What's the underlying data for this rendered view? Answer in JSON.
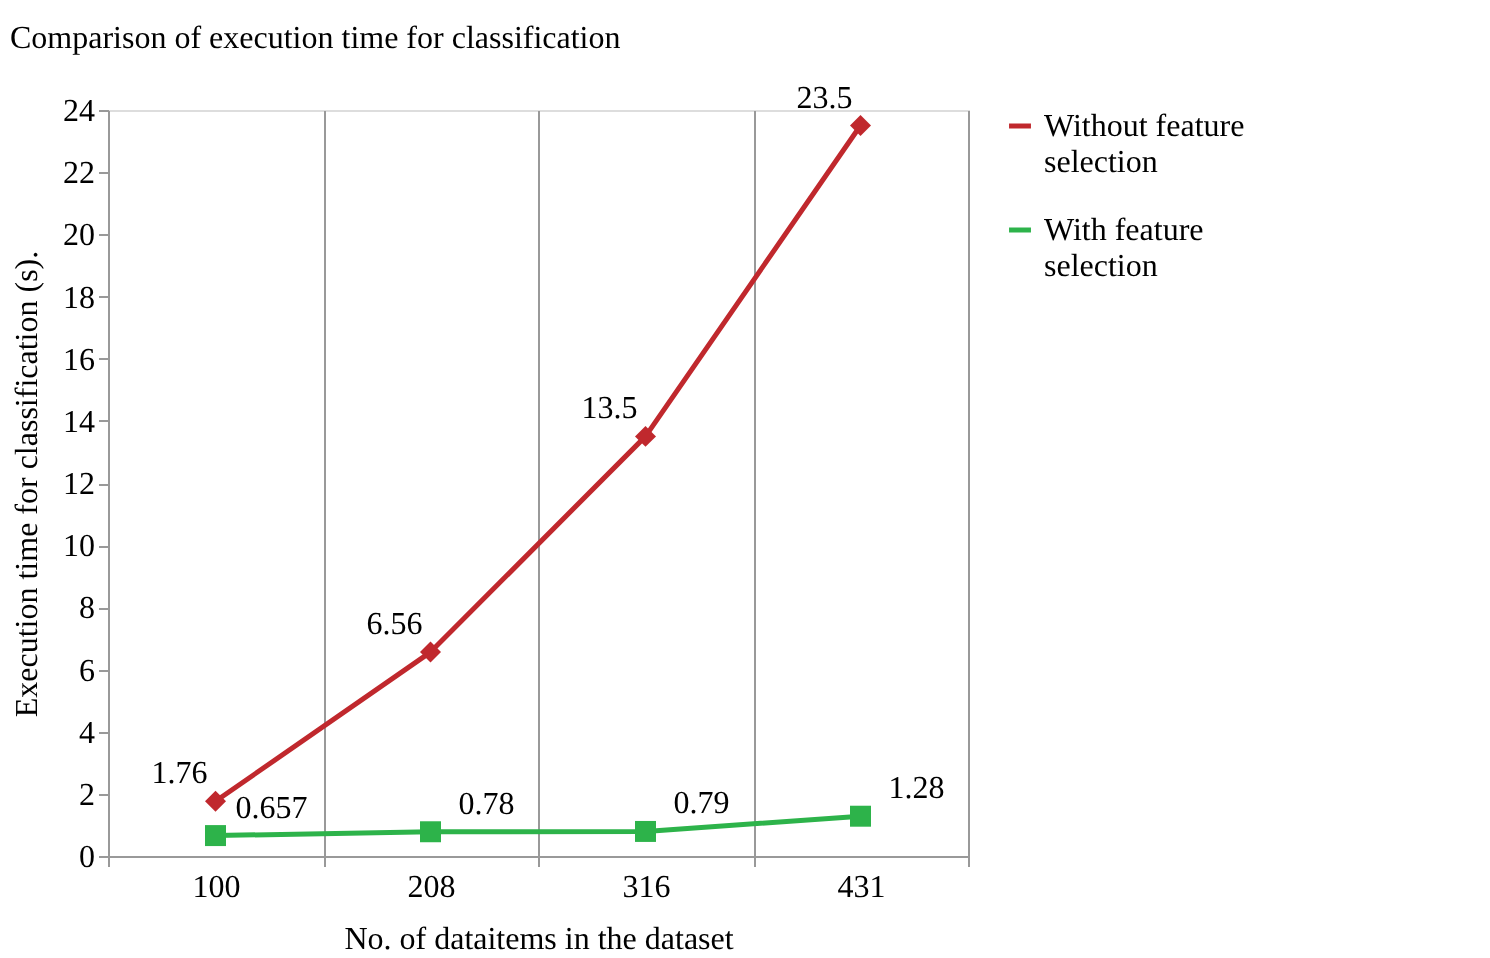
{
  "chart_data": {
    "type": "line",
    "title": "Comparison of execution time for classification",
    "xlabel": "No. of dataitems in the dataset",
    "ylabel": "Execution time for classification (s).",
    "categories": [
      "100",
      "208",
      "316",
      "431"
    ],
    "series": [
      {
        "name": "Without feature selection",
        "color": "#c0282d",
        "marker": "diamond",
        "values": [
          1.76,
          6.56,
          13.5,
          23.5
        ]
      },
      {
        "name": "With feature selection",
        "color": "#2db34a",
        "marker": "square",
        "values": [
          0.657,
          0.78,
          0.79,
          1.28
        ]
      }
    ],
    "ylim": [
      0,
      24
    ],
    "yticks": [
      0,
      2,
      4,
      6,
      8,
      10,
      12,
      14,
      16,
      18,
      20,
      22,
      24
    ],
    "grid": "x",
    "legend": "right",
    "data_labels": true
  }
}
